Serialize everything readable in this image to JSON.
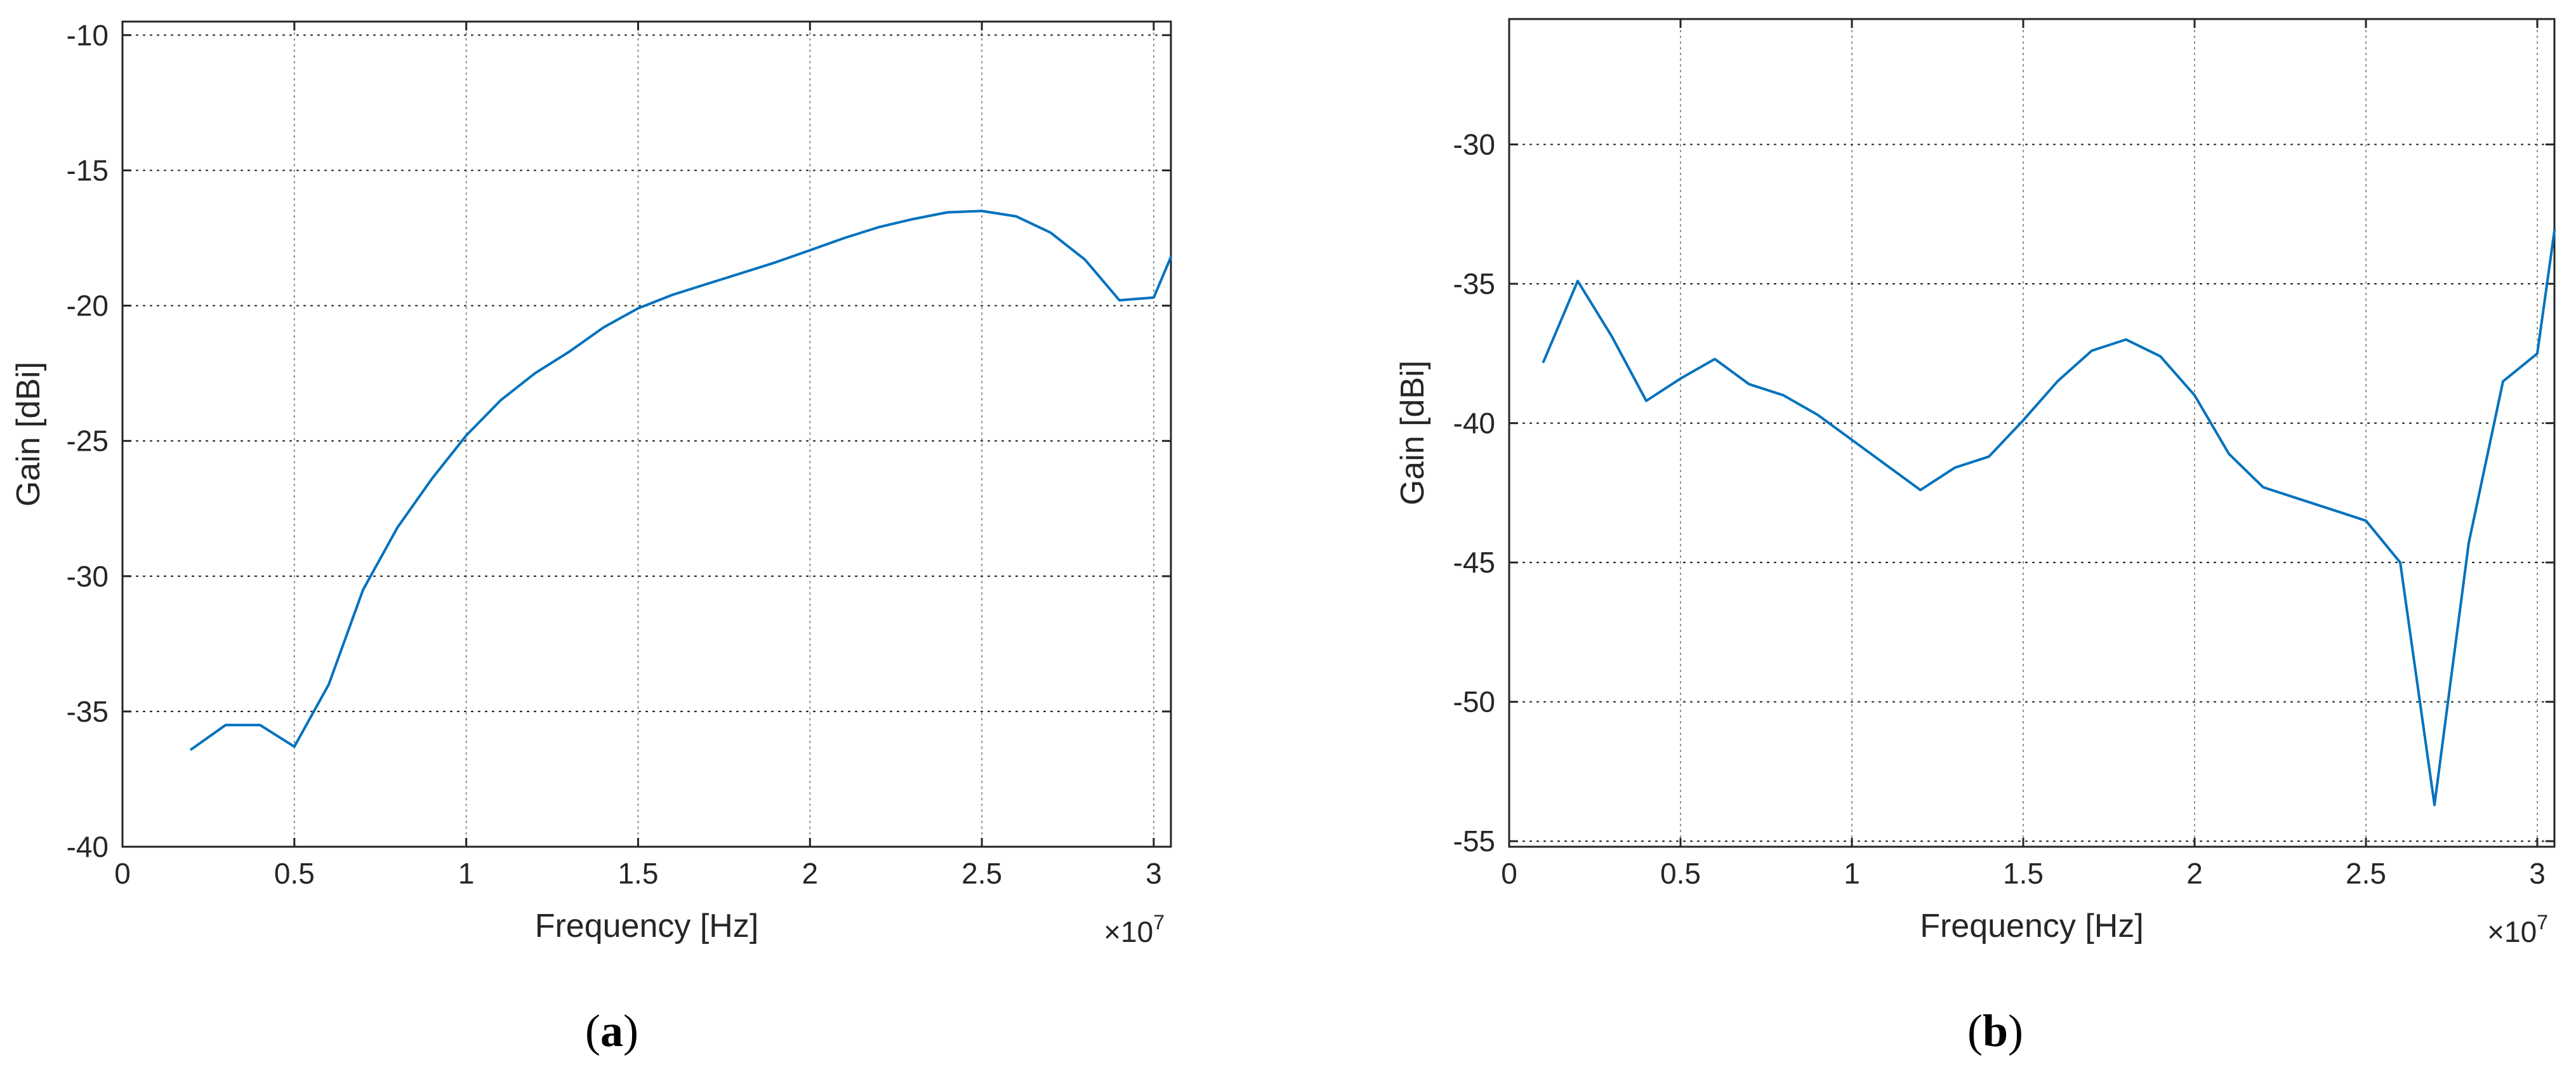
{
  "chart_data": [
    {
      "type": "line",
      "caption_letter": "a",
      "xlabel": "Frequency [Hz]",
      "ylabel": "Gain [dBi]",
      "x_multiplier": "×10",
      "x_multiplier_exp": "7",
      "xlim": [
        0,
        30500000
      ],
      "ylim": [
        -40,
        -9.5
      ],
      "x_ticks": [
        0,
        5000000,
        10000000,
        15000000,
        20000000,
        25000000,
        30000000
      ],
      "x_tick_labels": [
        "0",
        "0.5",
        "1",
        "1.5",
        "2",
        "2.5",
        "3"
      ],
      "y_ticks": [
        -40,
        -35,
        -30,
        -25,
        -20,
        -15,
        -10
      ],
      "y_tick_labels": [
        "-40",
        "-35",
        "-30",
        "-25",
        "-20",
        "-15",
        "-10"
      ],
      "grid": true,
      "series": [
        {
          "color": "#0072bd",
          "x": [
            2000000,
            3000000,
            4000000,
            5000000,
            6000000,
            7000000,
            8000000,
            9000000,
            10000000,
            11000000,
            12000000,
            13000000,
            14000000,
            15000000,
            16000000,
            17000000,
            18000000,
            19000000,
            20000000,
            21000000,
            22000000,
            23000000,
            24000000,
            25000000,
            26000000,
            27000000,
            28000000,
            29000000,
            30000000,
            30500000
          ],
          "y": [
            -36.4,
            -35.5,
            -35.5,
            -36.3,
            -34.0,
            -30.5,
            -28.2,
            -26.4,
            -24.8,
            -23.5,
            -22.5,
            -21.7,
            -20.8,
            -20.1,
            -19.6,
            -19.2,
            -18.8,
            -18.4,
            -17.95,
            -17.5,
            -17.1,
            -16.8,
            -16.55,
            -16.5,
            -16.7,
            -17.3,
            -18.3,
            -19.8,
            -19.7,
            -18.2
          ]
        }
      ]
    },
    {
      "type": "line",
      "caption_letter": "b",
      "xlabel": "Frequency [Hz]",
      "ylabel": "Gain [dBi]",
      "x_multiplier": "×10",
      "x_multiplier_exp": "7",
      "xlim": [
        0,
        30500000
      ],
      "ylim": [
        -55.2,
        -25.5
      ],
      "x_ticks": [
        0,
        5000000,
        10000000,
        15000000,
        20000000,
        25000000,
        30000000
      ],
      "x_tick_labels": [
        "0",
        "0.5",
        "1",
        "1.5",
        "2",
        "2.5",
        "3"
      ],
      "y_ticks": [
        -55,
        -50,
        -45,
        -40,
        -35,
        -30
      ],
      "y_tick_labels": [
        "-55",
        "-50",
        "-45",
        "-40",
        "-35",
        "-30"
      ],
      "grid": true,
      "series": [
        {
          "color": "#0072bd",
          "x": [
            1000000,
            2000000,
            3000000,
            4000000,
            5000000,
            6000000,
            7000000,
            8000000,
            9000000,
            10000000,
            11000000,
            12000000,
            13000000,
            14000000,
            15000000,
            16000000,
            17000000,
            18000000,
            19000000,
            20000000,
            21000000,
            22000000,
            23000000,
            24000000,
            25000000,
            26000000,
            27000000,
            28000000,
            29000000,
            30000000,
            30500000
          ],
          "y": [
            -37.8,
            -34.9,
            -36.9,
            -39.2,
            -38.4,
            -37.7,
            -38.6,
            -39.0,
            -39.7,
            -40.6,
            -41.5,
            -42.4,
            -41.6,
            -41.2,
            -39.9,
            -38.5,
            -37.4,
            -37.0,
            -37.6,
            -39.0,
            -41.1,
            -42.3,
            -42.7,
            -43.1,
            -43.5,
            -45.0,
            -53.7,
            -44.3,
            -38.5,
            -37.5,
            -33.1
          ]
        }
      ]
    }
  ]
}
